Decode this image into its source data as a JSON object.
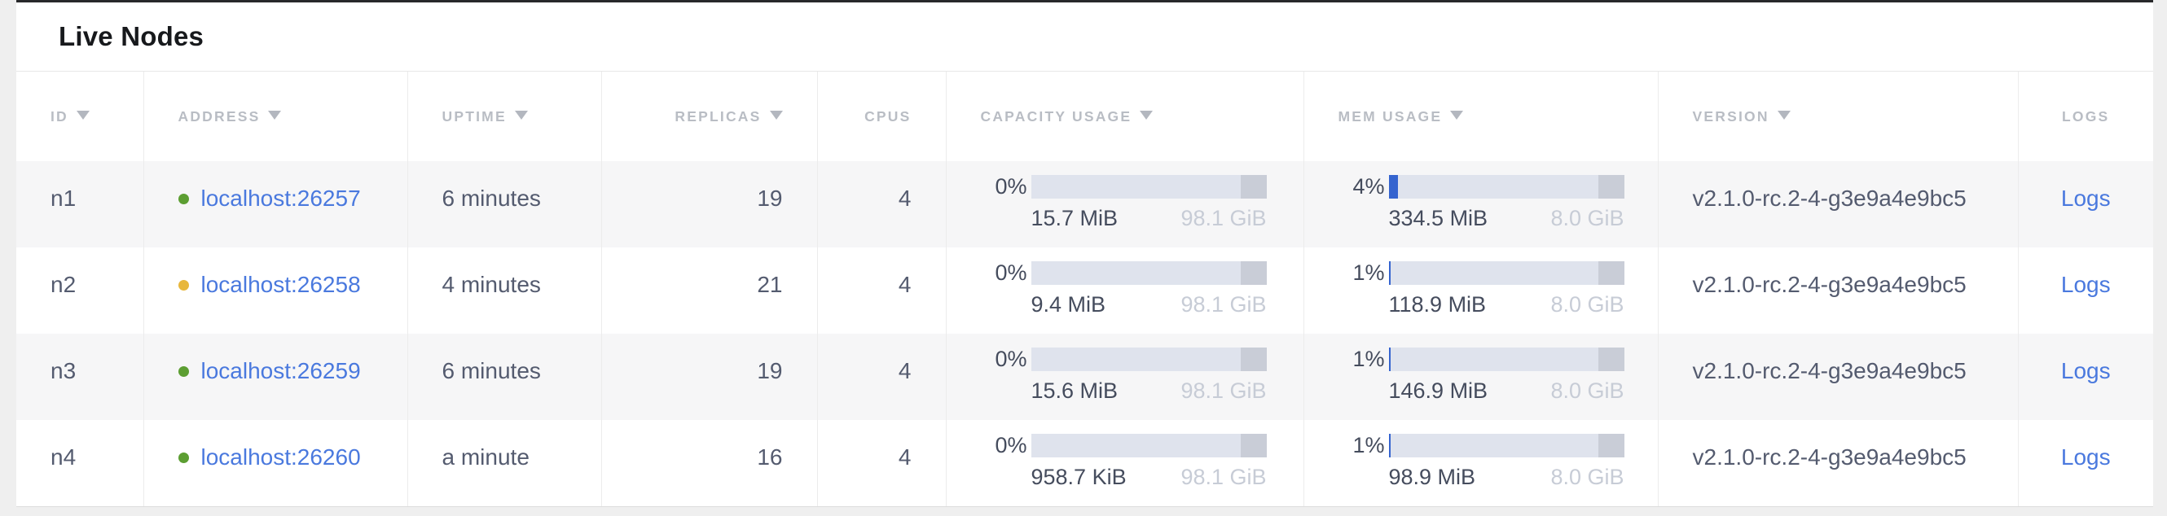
{
  "page": {
    "title": "Live Nodes"
  },
  "colors": {
    "link_blue": "#4a79de",
    "bar_fill_blue": "#3564cf",
    "bar_track": "#dfe3ed",
    "bar_reserved_gray": "#c9cdd7",
    "status_healthy_green": "#5c9e32",
    "status_suspect_yellow": "#e8b73c"
  },
  "table": {
    "columns": [
      {
        "key": "id",
        "label": "ID",
        "sortable": true
      },
      {
        "key": "address",
        "label": "ADDRESS",
        "sortable": true
      },
      {
        "key": "uptime",
        "label": "UPTIME",
        "sortable": true
      },
      {
        "key": "replicas",
        "label": "REPLICAS",
        "sortable": true
      },
      {
        "key": "cpus",
        "label": "CPUS",
        "sortable": false
      },
      {
        "key": "capacity",
        "label": "CAPACITY USAGE",
        "sortable": true
      },
      {
        "key": "mem",
        "label": "MEM USAGE",
        "sortable": true
      },
      {
        "key": "version",
        "label": "VERSION",
        "sortable": true
      },
      {
        "key": "logs",
        "label": "LOGS",
        "sortable": false
      }
    ],
    "rows": [
      {
        "id": "n1",
        "status": "healthy",
        "status_color": "#5c9e32",
        "address": "localhost:26257",
        "uptime": "6 minutes",
        "replicas": "19",
        "cpus": "4",
        "capacity": {
          "percent": "0%",
          "percent_value": 0,
          "used": "15.7 MiB",
          "total": "98.1 GiB"
        },
        "memory": {
          "percent": "4%",
          "percent_value": 4,
          "used": "334.5 MiB",
          "total": "8.0 GiB"
        },
        "version": "v2.1.0-rc.2-4-g3e9a4e9bc5",
        "logs_label": "Logs"
      },
      {
        "id": "n2",
        "status": "suspect",
        "status_color": "#e8b73c",
        "address": "localhost:26258",
        "uptime": "4 minutes",
        "replicas": "21",
        "cpus": "4",
        "capacity": {
          "percent": "0%",
          "percent_value": 0,
          "used": "9.4 MiB",
          "total": "98.1 GiB"
        },
        "memory": {
          "percent": "1%",
          "percent_value": 1,
          "used": "118.9 MiB",
          "total": "8.0 GiB"
        },
        "version": "v2.1.0-rc.2-4-g3e9a4e9bc5",
        "logs_label": "Logs"
      },
      {
        "id": "n3",
        "status": "healthy",
        "status_color": "#5c9e32",
        "address": "localhost:26259",
        "uptime": "6 minutes",
        "replicas": "19",
        "cpus": "4",
        "capacity": {
          "percent": "0%",
          "percent_value": 0,
          "used": "15.6 MiB",
          "total": "98.1 GiB"
        },
        "memory": {
          "percent": "1%",
          "percent_value": 1,
          "used": "146.9 MiB",
          "total": "8.0 GiB"
        },
        "version": "v2.1.0-rc.2-4-g3e9a4e9bc5",
        "logs_label": "Logs"
      },
      {
        "id": "n4",
        "status": "healthy",
        "status_color": "#5c9e32",
        "address": "localhost:26260",
        "uptime": "a minute",
        "replicas": "16",
        "cpus": "4",
        "capacity": {
          "percent": "0%",
          "percent_value": 0,
          "used": "958.7 KiB",
          "total": "98.1 GiB"
        },
        "memory": {
          "percent": "1%",
          "percent_value": 1,
          "used": "98.9 MiB",
          "total": "8.0 GiB"
        },
        "version": "v2.1.0-rc.2-4-g3e9a4e9bc5",
        "logs_label": "Logs"
      }
    ]
  }
}
